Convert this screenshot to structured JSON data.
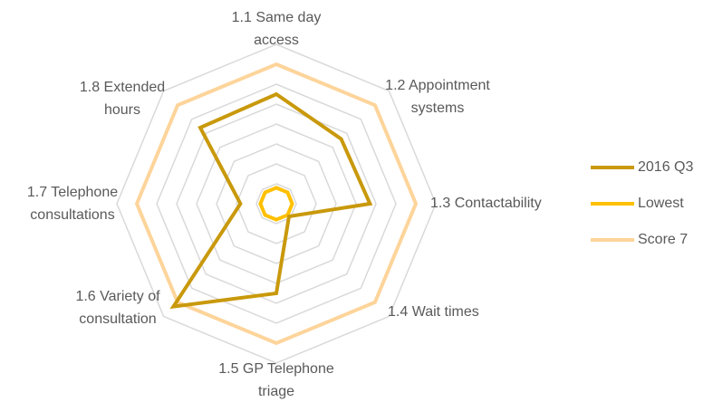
{
  "chart_data": {
    "type": "radar",
    "categories": [
      [
        "1.1 Same day",
        "access"
      ],
      [
        "1.2 Appointment",
        "systems"
      ],
      [
        "1.3 Contactability"
      ],
      [
        "1.4 Wait times"
      ],
      [
        "1.5 GP Telephone",
        "triage"
      ],
      [
        "1.6 Variety of",
        "consultation"
      ],
      [
        "1.7 Telephone",
        "consultations"
      ],
      [
        "1.8 Extended",
        "hours"
      ]
    ],
    "series": [
      {
        "name": "2016 Q3",
        "color": "#c9990c",
        "values": [
          5.5,
          4.6,
          4.7,
          0.9,
          4.5,
          7.3,
          1.8,
          5.4
        ]
      },
      {
        "name": "Lowest",
        "color": "#ffc000",
        "values": [
          0.8,
          0.8,
          0.8,
          0.8,
          0.8,
          0.8,
          0.8,
          0.8
        ]
      },
      {
        "name": "Score 7",
        "color": "#fdd49a",
        "values": [
          7,
          7,
          7,
          7,
          7,
          7,
          7,
          7
        ]
      }
    ],
    "rlim": [
      0,
      8
    ],
    "rticks": [
      0,
      1,
      2,
      3,
      4,
      5,
      6,
      7,
      8
    ],
    "grid": true,
    "legend": "right"
  }
}
